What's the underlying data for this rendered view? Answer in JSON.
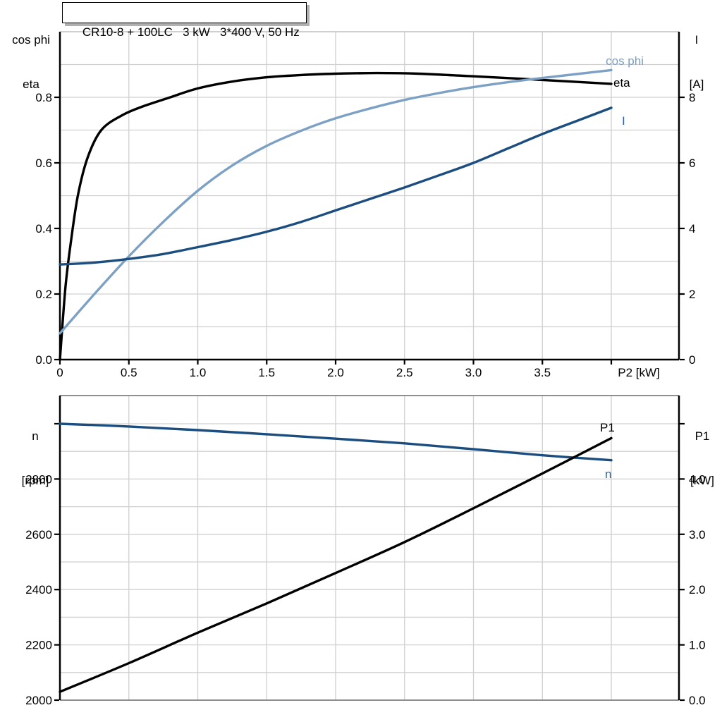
{
  "title_box": {
    "text": "CR10-8 + 100LC   3 kW   3*400 V, 50 Hz"
  },
  "axis_headers": {
    "top_left_line1": "cos phi",
    "top_left_line2": "eta",
    "top_right_line1": "I",
    "top_right_line2": "[A]",
    "bottom_left_line1": "n",
    "bottom_left_line2": "[rpm]",
    "bottom_right_line1": "P1",
    "bottom_right_line2": "[kW]"
  },
  "colors": {
    "black": "#000000",
    "cos_phi": "#7CA1C5",
    "dark_blue": "#1B4E7F",
    "blue_label": "#2A66AD",
    "grid": "#d0d0d0",
    "frame": "#8f8f8f"
  },
  "chart_data": [
    {
      "type": "line",
      "title": "CR10-8 + 100LC   3 kW   3*400 V, 50 Hz",
      "xlabel": "P2 [kW]",
      "x_range": [
        0,
        4.49
      ],
      "x_ticks": [
        0,
        0.5,
        1,
        1.5,
        2,
        2.5,
        3,
        3.5,
        4
      ],
      "x_tick_labels": [
        "0",
        "0.5",
        "1.0",
        "1.5",
        "2.0",
        "2.5",
        "3.0",
        "3.5",
        ""
      ],
      "grid": true,
      "left_axis": {
        "name": "cos phi / eta",
        "range": [
          0,
          1.0
        ],
        "ticks": [
          0,
          0.2,
          0.4,
          0.6,
          0.8
        ],
        "tick_labels": [
          "0.0",
          "0.2",
          "0.4",
          "0.6",
          "0.8"
        ],
        "minor_grid_step": 0.1
      },
      "right_axis": {
        "name": "I [A]",
        "range": [
          0,
          10
        ],
        "ticks": [
          0,
          2,
          4,
          6,
          8
        ],
        "tick_labels": [
          "0",
          "2",
          "4",
          "6",
          "8"
        ]
      },
      "series": [
        {
          "key": "eta",
          "label": "eta",
          "axis": "left",
          "color": "black",
          "label_color": "black",
          "points": [
            [
              0,
              0
            ],
            [
              0.04,
              0.22
            ],
            [
              0.08,
              0.36
            ],
            [
              0.13,
              0.5
            ],
            [
              0.2,
              0.615
            ],
            [
              0.3,
              0.7
            ],
            [
              0.45,
              0.745
            ],
            [
              0.6,
              0.772
            ],
            [
              0.8,
              0.8
            ],
            [
              1.0,
              0.827
            ],
            [
              1.25,
              0.848
            ],
            [
              1.5,
              0.861
            ],
            [
              1.75,
              0.868
            ],
            [
              2.0,
              0.872
            ],
            [
              2.3,
              0.874
            ],
            [
              2.6,
              0.872
            ],
            [
              3.0,
              0.864
            ],
            [
              3.5,
              0.853
            ],
            [
              4.0,
              0.841
            ]
          ]
        },
        {
          "key": "cos_phi",
          "label": "cos phi",
          "axis": "left",
          "color": "cos_phi",
          "label_color": "cos_phi",
          "points": [
            [
              0,
              0.08
            ],
            [
              0.25,
              0.2
            ],
            [
              0.5,
              0.315
            ],
            [
              0.75,
              0.42
            ],
            [
              1.0,
              0.515
            ],
            [
              1.25,
              0.592
            ],
            [
              1.5,
              0.652
            ],
            [
              1.75,
              0.698
            ],
            [
              2.0,
              0.736
            ],
            [
              2.25,
              0.766
            ],
            [
              2.5,
              0.792
            ],
            [
              2.75,
              0.813
            ],
            [
              3.0,
              0.831
            ],
            [
              3.25,
              0.846
            ],
            [
              3.5,
              0.859
            ],
            [
              3.75,
              0.871
            ],
            [
              4.0,
              0.883
            ]
          ]
        },
        {
          "key": "current",
          "label": "I",
          "axis": "right",
          "color": "dark_blue",
          "label_color": "blue_label",
          "points": [
            [
              0,
              2.9
            ],
            [
              0.25,
              2.96
            ],
            [
              0.5,
              3.07
            ],
            [
              0.75,
              3.22
            ],
            [
              1.0,
              3.43
            ],
            [
              1.25,
              3.65
            ],
            [
              1.5,
              3.9
            ],
            [
              1.75,
              4.2
            ],
            [
              2.0,
              4.55
            ],
            [
              2.25,
              4.9
            ],
            [
              2.5,
              5.25
            ],
            [
              2.75,
              5.62
            ],
            [
              3.0,
              6.0
            ],
            [
              3.25,
              6.44
            ],
            [
              3.5,
              6.88
            ],
            [
              3.75,
              7.28
            ],
            [
              4.0,
              7.68
            ]
          ]
        }
      ]
    },
    {
      "type": "line",
      "title": "",
      "xlabel": "",
      "x_range": [
        0,
        4.49
      ],
      "x_ticks": [],
      "x_tick_labels": [],
      "grid": true,
      "left_axis": {
        "name": "n [rpm]",
        "range": [
          2000,
          3102
        ],
        "ticks": [
          2000,
          2200,
          2400,
          2600,
          2800,
          3000
        ],
        "tick_labels": [
          "2000",
          "2200",
          "2400",
          "2600",
          "2800",
          ""
        ],
        "minor_grid_step": 100
      },
      "right_axis": {
        "name": "P1 [kW]",
        "range": [
          0,
          5.51
        ],
        "ticks": [
          0,
          1,
          2,
          3,
          4,
          5
        ],
        "tick_labels": [
          "0.0",
          "1.0",
          "2.0",
          "3.0",
          "4.0",
          ""
        ]
      },
      "series": [
        {
          "key": "speed",
          "label": "n",
          "axis": "left",
          "color": "dark_blue",
          "label_color": "blue_label",
          "points": [
            [
              0,
              3000
            ],
            [
              0.5,
              2990
            ],
            [
              1.0,
              2977
            ],
            [
              1.5,
              2962
            ],
            [
              2.0,
              2946
            ],
            [
              2.5,
              2929
            ],
            [
              3.0,
              2908
            ],
            [
              3.5,
              2886
            ],
            [
              4.0,
              2868
            ]
          ]
        },
        {
          "key": "p1",
          "label": "P1",
          "axis": "right",
          "color": "black",
          "label_color": "black",
          "points": [
            [
              0,
              0.15
            ],
            [
              0.5,
              0.67
            ],
            [
              1.0,
              1.22
            ],
            [
              1.5,
              1.75
            ],
            [
              2.0,
              2.3
            ],
            [
              2.5,
              2.86
            ],
            [
              3.0,
              3.47
            ],
            [
              3.5,
              4.1
            ],
            [
              4.0,
              4.74
            ]
          ]
        }
      ]
    }
  ]
}
